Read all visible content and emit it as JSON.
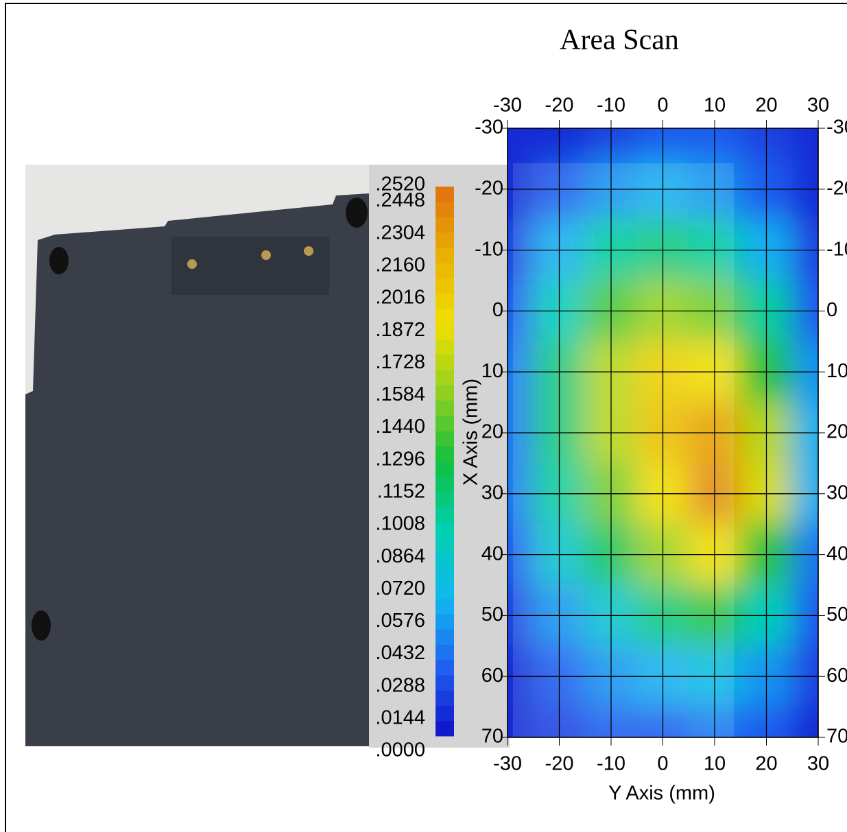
{
  "chart_data": {
    "type": "heatmap",
    "title": "Area Scan",
    "x_label": "Y Axis (mm)",
    "y_label": "X Axis (mm)",
    "x": [
      -30,
      -20,
      -10,
      0,
      10,
      20,
      30
    ],
    "y": [
      -30,
      -20,
      -10,
      0,
      10,
      20,
      30,
      40,
      50,
      60,
      70
    ],
    "z": [
      [
        0.01,
        0.01,
        0.02,
        0.03,
        0.03,
        0.02,
        0.01
      ],
      [
        0.01,
        0.03,
        0.05,
        0.06,
        0.05,
        0.03,
        0.01
      ],
      [
        0.02,
        0.06,
        0.1,
        0.11,
        0.1,
        0.06,
        0.02
      ],
      [
        0.03,
        0.09,
        0.14,
        0.16,
        0.15,
        0.1,
        0.03
      ],
      [
        0.04,
        0.11,
        0.17,
        0.2,
        0.19,
        0.13,
        0.05
      ],
      [
        0.04,
        0.11,
        0.17,
        0.21,
        0.23,
        0.17,
        0.06
      ],
      [
        0.04,
        0.1,
        0.15,
        0.19,
        0.24,
        0.18,
        0.06
      ],
      [
        0.03,
        0.08,
        0.12,
        0.16,
        0.19,
        0.13,
        0.04
      ],
      [
        0.02,
        0.05,
        0.08,
        0.11,
        0.13,
        0.09,
        0.03
      ],
      [
        0.01,
        0.03,
        0.05,
        0.06,
        0.07,
        0.05,
        0.02
      ],
      [
        0.01,
        0.02,
        0.03,
        0.03,
        0.04,
        0.03,
        0.01
      ]
    ],
    "xlim": [
      -30,
      30
    ],
    "xticks": [
      -30,
      -20,
      -10,
      0,
      10,
      20,
      30
    ],
    "ylim": [
      -30,
      70
    ],
    "yticks": [
      -30,
      -20,
      -10,
      0,
      10,
      20,
      30,
      40,
      50,
      60,
      70
    ],
    "y_inverted": true,
    "grid": true,
    "clim": [
      0,
      0.252
    ],
    "colorscale": [
      "#1010c8",
      "#2060f0",
      "#10b8f0",
      "#00d0b0",
      "#10c040",
      "#90d020",
      "#f0e000",
      "#e8b000",
      "#e07010"
    ],
    "cticks": [
      {
        "value": 0.252,
        "label": ".2520"
      },
      {
        "value": 0.2448,
        "label": ".2448"
      },
      {
        "value": 0.2304,
        "label": ".2304"
      },
      {
        "value": 0.216,
        "label": ".2160"
      },
      {
        "value": 0.2016,
        "label": ".2016"
      },
      {
        "value": 0.1872,
        "label": ".1872"
      },
      {
        "value": 0.1728,
        "label": ".1728"
      },
      {
        "value": 0.1584,
        "label": ".1584"
      },
      {
        "value": 0.144,
        "label": ".1440"
      },
      {
        "value": 0.1296,
        "label": ".1296"
      },
      {
        "value": 0.1152,
        "label": ".1152"
      },
      {
        "value": 0.1008,
        "label": ".1008"
      },
      {
        "value": 0.0864,
        "label": ".0864"
      },
      {
        "value": 0.072,
        "label": ".0720"
      },
      {
        "value": 0.0576,
        "label": ".0576"
      },
      {
        "value": 0.0432,
        "label": ".0432"
      },
      {
        "value": 0.0288,
        "label": ".0288"
      },
      {
        "value": 0.0144,
        "label": ".0144"
      },
      {
        "value": 0,
        "label": ".0000"
      }
    ]
  }
}
